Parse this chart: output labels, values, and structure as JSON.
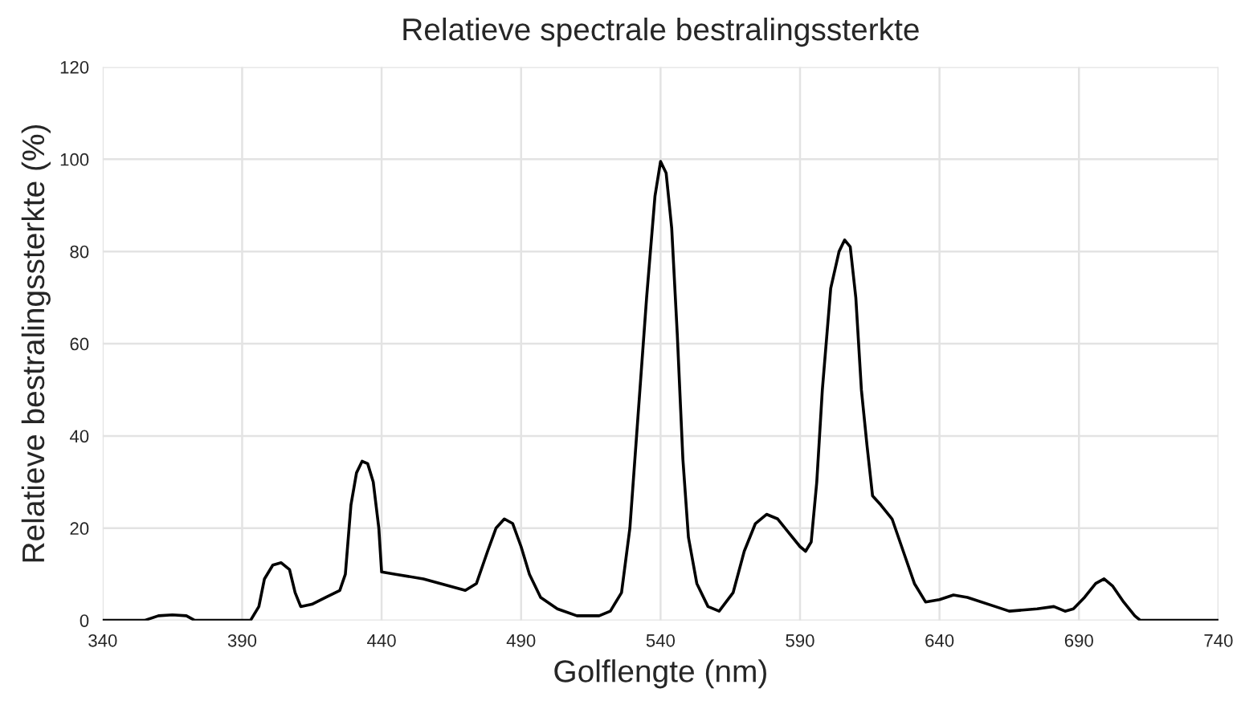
{
  "chart_data": {
    "type": "line",
    "title": "Relatieve spectrale bestralingssterkte",
    "xlabel": "Golflengte (nm)",
    "ylabel": "Relatieve bestralingssterkte (%)",
    "xlim": [
      340,
      740
    ],
    "xticks": [
      340,
      390,
      440,
      490,
      540,
      590,
      640,
      690,
      740
    ],
    "ylim": [
      0,
      120
    ],
    "yticks": [
      0,
      20,
      40,
      60,
      80,
      100,
      120
    ],
    "grid": true,
    "marker": "none",
    "line_style": "solid",
    "series": [
      {
        "color": "#000000",
        "x": [
          340,
          355,
          360,
          365,
          370,
          373,
          380,
          393,
          396,
          398,
          401,
          404,
          407,
          409,
          411,
          415,
          420,
          425,
          427,
          429,
          431,
          433,
          435,
          437,
          439,
          440,
          445,
          455,
          470,
          474,
          478,
          481,
          484,
          487,
          490,
          493,
          497,
          503,
          510,
          518,
          522,
          526,
          529,
          532,
          535,
          538,
          540,
          542,
          544,
          546,
          548,
          550,
          553,
          557,
          561,
          566,
          570,
          574,
          578,
          582,
          586,
          590,
          592,
          594,
          596,
          598,
          601,
          604,
          606,
          608,
          610,
          612,
          614,
          616,
          619,
          623,
          627,
          631,
          635,
          640,
          645,
          650,
          660,
          665,
          675,
          681,
          685,
          688,
          692,
          696,
          699,
          702,
          706,
          710,
          712,
          740
        ],
        "values": [
          0,
          0,
          1,
          1.2,
          1,
          0,
          0,
          0,
          3,
          9,
          12,
          12.5,
          11,
          6,
          3,
          3.5,
          5,
          6.5,
          10,
          25,
          32,
          34.5,
          34,
          30,
          20,
          10.5,
          10,
          9,
          6.5,
          8,
          15,
          20,
          22,
          21,
          16,
          10,
          5,
          2.5,
          1,
          1,
          2,
          6,
          20,
          45,
          70,
          92,
          99.5,
          97,
          85,
          62,
          35,
          18,
          8,
          3,
          2,
          6,
          15,
          21,
          23,
          22,
          19,
          16,
          15,
          17,
          30,
          50,
          72,
          80,
          82.5,
          81,
          70,
          50,
          38,
          27,
          25,
          22,
          15,
          8,
          4,
          4.5,
          5.5,
          5,
          3,
          2,
          2.5,
          3,
          2,
          2.5,
          5,
          8,
          9,
          7.5,
          4,
          1,
          0,
          0
        ]
      }
    ]
  }
}
